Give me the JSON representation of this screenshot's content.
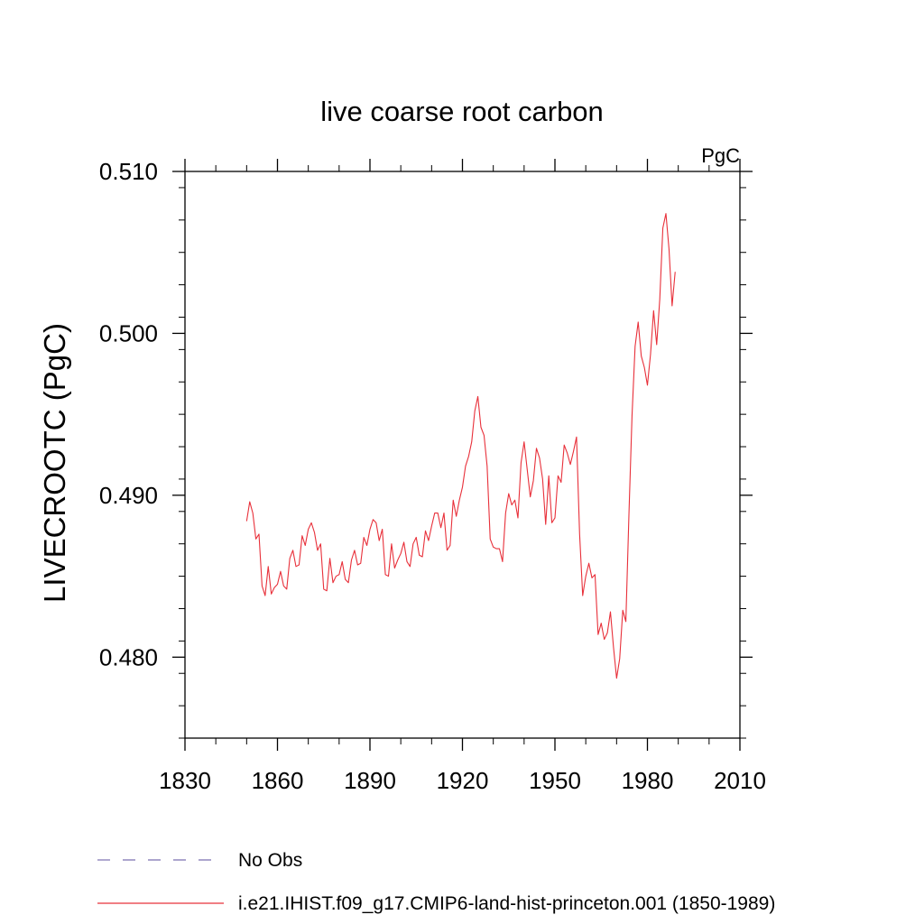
{
  "chart_data": {
    "type": "line",
    "title": "live coarse root carbon",
    "units": "PgC",
    "ylabel": "LIVECROOTC  (PgC)",
    "xlabel": "",
    "xlim": [
      1830,
      2010
    ],
    "ylim": [
      0.475,
      0.51
    ],
    "xticks": [
      1830,
      1860,
      1890,
      1920,
      1950,
      1980,
      2010
    ],
    "xtick_labels": [
      "1830",
      "1860",
      "1890",
      "1920",
      "1950",
      "1980",
      "2010"
    ],
    "yticks": [
      0.48,
      0.49,
      0.5,
      0.51
    ],
    "ytick_labels": [
      "0.480",
      "0.490",
      "0.500",
      "0.510"
    ],
    "grid": false,
    "legend_position": "bottom",
    "legend": [
      {
        "label": "No Obs",
        "color": "#7b6fb0",
        "style": "dashed"
      },
      {
        "label": "i.e21.IHIST.f09_g17.CMIP6-land-hist-princeton.001 (1850-1989)",
        "color": "#e8303a",
        "style": "solid"
      }
    ],
    "series": [
      {
        "name": "i.e21.IHIST.f09_g17.CMIP6-land-hist-princeton.001 (1850-1989)",
        "color": "#e8303a",
        "x_start": 1850,
        "x_step": 1,
        "values": [
          0.4884,
          0.4896,
          0.4889,
          0.4873,
          0.4876,
          0.4844,
          0.4838,
          0.4856,
          0.4839,
          0.4843,
          0.4845,
          0.4853,
          0.4844,
          0.4842,
          0.4861,
          0.4866,
          0.4856,
          0.4857,
          0.4875,
          0.4869,
          0.4879,
          0.4883,
          0.4877,
          0.4866,
          0.487,
          0.4842,
          0.4841,
          0.4861,
          0.4846,
          0.485,
          0.4851,
          0.4859,
          0.4848,
          0.4846,
          0.486,
          0.4866,
          0.4857,
          0.4858,
          0.4874,
          0.4869,
          0.4879,
          0.4885,
          0.4883,
          0.4872,
          0.4879,
          0.4851,
          0.485,
          0.487,
          0.4855,
          0.486,
          0.4864,
          0.4871,
          0.4859,
          0.4856,
          0.487,
          0.4874,
          0.4863,
          0.4862,
          0.4878,
          0.4872,
          0.4881,
          0.4889,
          0.4889,
          0.488,
          0.4889,
          0.4866,
          0.4869,
          0.4897,
          0.4887,
          0.4897,
          0.4905,
          0.4918,
          0.4924,
          0.4933,
          0.4952,
          0.4961,
          0.4942,
          0.4937,
          0.4918,
          0.4873,
          0.4868,
          0.4867,
          0.4867,
          0.4859,
          0.4889,
          0.4901,
          0.4894,
          0.4897,
          0.4886,
          0.492,
          0.4933,
          0.4916,
          0.4899,
          0.4909,
          0.4929,
          0.4923,
          0.491,
          0.4882,
          0.4912,
          0.4883,
          0.4886,
          0.4912,
          0.4908,
          0.4931,
          0.4926,
          0.4919,
          0.4927,
          0.4936,
          0.4876,
          0.4838,
          0.485,
          0.4858,
          0.4849,
          0.4851,
          0.4814,
          0.4821,
          0.4811,
          0.4815,
          0.4828,
          0.4806,
          0.4787,
          0.4799,
          0.4829,
          0.4822,
          0.4888,
          0.4949,
          0.4992,
          0.5007,
          0.4986,
          0.4979,
          0.4968,
          0.4987,
          0.5014,
          0.4993,
          0.5021,
          0.5065,
          0.5074,
          0.5052,
          0.5017,
          0.5038
        ]
      }
    ]
  }
}
